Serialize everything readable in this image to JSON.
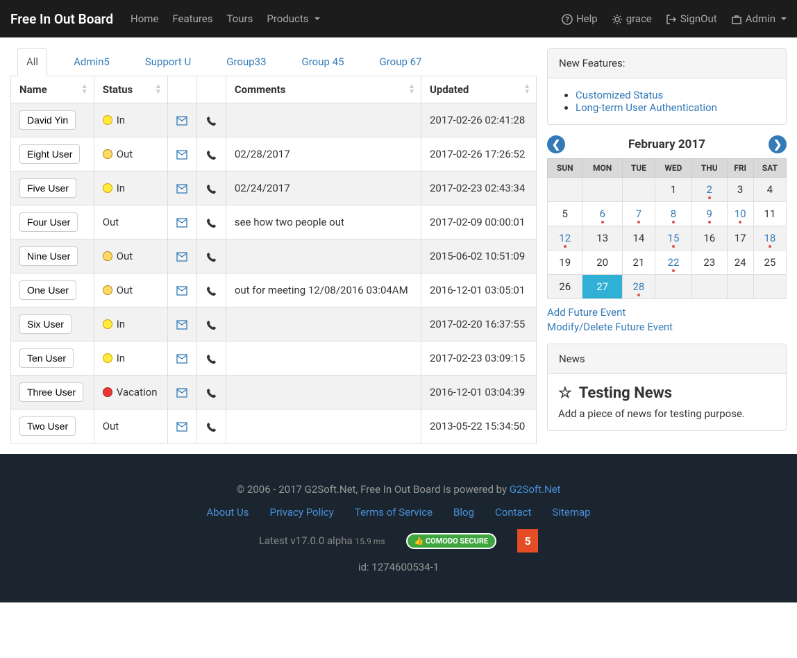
{
  "navbar": {
    "brand": "Free In Out Board",
    "left": [
      {
        "label": "Home"
      },
      {
        "label": "Features"
      },
      {
        "label": "Tours"
      },
      {
        "label": "Products",
        "dropdown": true
      }
    ],
    "right": [
      {
        "icon": "help",
        "label": "Help"
      },
      {
        "icon": "gear",
        "label": "grace"
      },
      {
        "icon": "signout",
        "label": "SignOut"
      },
      {
        "icon": "briefcase",
        "label": "Admin",
        "dropdown": true
      }
    ]
  },
  "tabs": [
    {
      "label": "All",
      "active": true
    },
    {
      "label": "Admin5"
    },
    {
      "label": "Support U"
    },
    {
      "label": "Group33"
    },
    {
      "label": "Group 45"
    },
    {
      "label": "Group 67"
    }
  ],
  "table": {
    "columns": [
      "Name",
      "Status",
      "",
      "",
      "Comments",
      "Updated"
    ],
    "rows": [
      {
        "name": "David Yin",
        "status": "In",
        "face": "in",
        "comments": "",
        "updated": "2017-02-26 02:41:28"
      },
      {
        "name": "Eight User",
        "status": "Out",
        "face": "out",
        "comments": "02/28/2017",
        "updated": "2017-02-26 17:26:52"
      },
      {
        "name": "Five User",
        "status": "In",
        "face": "in",
        "comments": "02/24/2017",
        "updated": "2017-02-23 02:43:34"
      },
      {
        "name": "Four User",
        "status": "Out",
        "face": null,
        "comments": "see how two people out",
        "updated": "2017-02-09 00:00:01"
      },
      {
        "name": "Nine User",
        "status": "Out",
        "face": "out",
        "comments": "",
        "updated": "2015-06-02 10:51:09"
      },
      {
        "name": "One User",
        "status": "Out",
        "face": "out",
        "comments": "out for meeting 12/08/2016 03:04AM",
        "updated": "2016-12-01 03:05:01"
      },
      {
        "name": "Six User",
        "status": "In",
        "face": "in",
        "comments": "",
        "updated": "2017-02-20 16:37:55"
      },
      {
        "name": "Ten User",
        "status": "In",
        "face": "in",
        "comments": "",
        "updated": "2017-02-23 03:09:15"
      },
      {
        "name": "Three User",
        "status": "Vacation",
        "face": "vac",
        "comments": "",
        "updated": "2016-12-01 03:04:39"
      },
      {
        "name": "Two User",
        "status": "Out",
        "face": null,
        "comments": "",
        "updated": "2013-05-22 15:34:50"
      }
    ]
  },
  "features": {
    "title": "New Features:",
    "items": [
      "Customized Status",
      "Long-term User Authentication"
    ]
  },
  "calendar": {
    "title": "February 2017",
    "headers": [
      "SUN",
      "MON",
      "TUE",
      "WED",
      "THU",
      "FRI",
      "SAT"
    ],
    "weeks": [
      [
        {
          "d": ""
        },
        {
          "d": ""
        },
        {
          "d": ""
        },
        {
          "d": "1"
        },
        {
          "d": "2",
          "link": true,
          "dot": true
        },
        {
          "d": "3"
        },
        {
          "d": "4"
        }
      ],
      [
        {
          "d": "5"
        },
        {
          "d": "6",
          "link": true,
          "dot": true
        },
        {
          "d": "7",
          "link": true,
          "dot": true
        },
        {
          "d": "8",
          "link": true,
          "dot": true
        },
        {
          "d": "9",
          "link": true,
          "dot": true
        },
        {
          "d": "10",
          "link": true,
          "dot": true
        },
        {
          "d": "11"
        }
      ],
      [
        {
          "d": "12",
          "link": true,
          "dot": true
        },
        {
          "d": "13"
        },
        {
          "d": "14"
        },
        {
          "d": "15",
          "link": true,
          "dot": true
        },
        {
          "d": "16"
        },
        {
          "d": "17"
        },
        {
          "d": "18",
          "link": true,
          "dot": true
        }
      ],
      [
        {
          "d": "19"
        },
        {
          "d": "20"
        },
        {
          "d": "21"
        },
        {
          "d": "22",
          "link": true,
          "dot": true
        },
        {
          "d": "23"
        },
        {
          "d": "24"
        },
        {
          "d": "25"
        }
      ],
      [
        {
          "d": "26"
        },
        {
          "d": "27",
          "today": true
        },
        {
          "d": "28",
          "link": true,
          "dot": true
        },
        {
          "d": ""
        },
        {
          "d": ""
        },
        {
          "d": ""
        },
        {
          "d": ""
        }
      ]
    ],
    "links": [
      "Add Future Event",
      "Modify/Delete Future Event"
    ]
  },
  "news": {
    "title": "News",
    "item_title": "Testing News",
    "item_body": "Add a piece of news for testing purpose."
  },
  "footer": {
    "copyright": "© 2006 - 2017 G2Soft.Net, Free In Out Board is powered by ",
    "copylink": "G2Soft.Net",
    "links": [
      "About Us",
      "Privacy Policy",
      "Terms of Service",
      "Blog",
      "Contact",
      "Sitemap"
    ],
    "version": "Latest v17.0.0 alpha",
    "ms": "15.9 ms",
    "secure": "COMODO SECURE",
    "h5": "5",
    "id": "id: 1274600534-1"
  },
  "colors": {
    "link": "#337ab7",
    "navbar": "#1c1c1c",
    "footer": "#1a252f",
    "today": "#31b0d5"
  }
}
